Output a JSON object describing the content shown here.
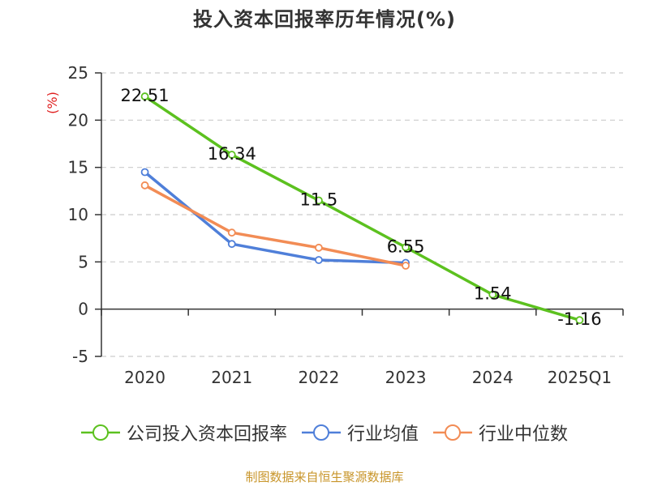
{
  "chart_data": {
    "type": "line",
    "title": "投入资本回报率历年情况(%)",
    "ylabel": "(%)",
    "categories": [
      "2020",
      "2021",
      "2022",
      "2023",
      "2024",
      "2025Q1"
    ],
    "ylim": [
      -5,
      25
    ],
    "yticks": [
      25,
      20,
      15,
      10,
      5,
      0,
      -5
    ],
    "grid": true,
    "legend_position": "bottom",
    "series": [
      {
        "name": "公司投入资本回报率",
        "color": "#5cc11f",
        "values": [
          22.51,
          16.34,
          11.5,
          6.55,
          1.54,
          -1.16
        ],
        "labels": [
          "22.51",
          "16.34",
          "11.5",
          "6.55",
          "1.54",
          "-1.16"
        ]
      },
      {
        "name": "行业均值",
        "color": "#4f7fd9",
        "values": [
          14.5,
          6.9,
          5.2,
          4.9,
          null,
          null
        ]
      },
      {
        "name": "行业中位数",
        "color": "#f28c55",
        "values": [
          13.1,
          8.1,
          6.5,
          4.6,
          null,
          null
        ]
      }
    ]
  },
  "footer": {
    "source": "制图数据来自恒生聚源数据库"
  }
}
